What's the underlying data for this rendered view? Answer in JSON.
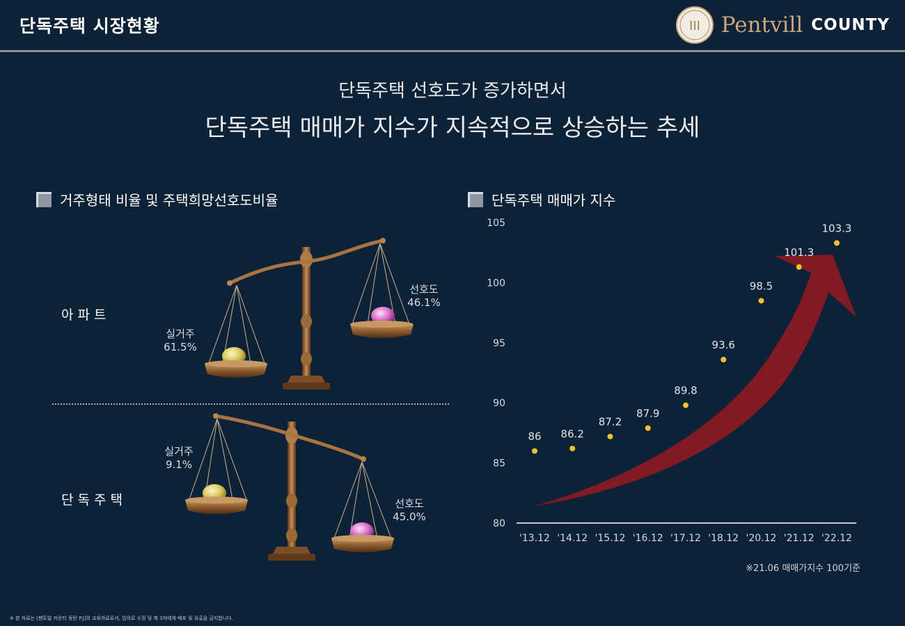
{
  "header": {
    "title": "단독주택 시장현황",
    "logo_monogram": "III",
    "brand_name": "Pentvill",
    "brand_suffix": "COUNTY"
  },
  "headline": {
    "line1": "단독주택 선호도가 증가하면서",
    "line2": "단독주택 매매가 지수가 지속적으로 상승하는 추세"
  },
  "left_section": {
    "title": "거주형태 비율 및 주택희망선호도비율",
    "rows": [
      {
        "label": "아파트",
        "left_pan": {
          "label": "실거주",
          "value": "61.5%"
        },
        "right_pan": {
          "label": "선호도",
          "value": "46.1%"
        }
      },
      {
        "label": "단독주택",
        "left_pan": {
          "label": "실거주",
          "value": "9.1%"
        },
        "right_pan": {
          "label": "선호도",
          "value": "45.0%"
        }
      }
    ]
  },
  "right_section": {
    "title": "단독주택 매매가 지수",
    "note": "※21.06 매매가지수 100기준"
  },
  "chart_data": {
    "type": "scatter",
    "title": "단독주택 매매가 지수",
    "categories": [
      "'13.12",
      "'14.12",
      "'15.12",
      "'16.12",
      "'17.12",
      "'18.12",
      "'20.12",
      "'21.12",
      "'22.12"
    ],
    "series": [
      {
        "values": [
          86,
          86.2,
          87.2,
          87.9,
          89.8,
          93.6,
          98.5,
          101.3,
          103.3
        ]
      }
    ],
    "data_labels": [
      "86",
      "86.2",
      "87.2",
      "87.9",
      "89.8",
      "93.6",
      "98.5",
      "101.3",
      "103.3"
    ],
    "ylim": [
      80,
      105
    ],
    "yticks": [
      80,
      85,
      90,
      95,
      100,
      105
    ],
    "point_color": "#f2c12e",
    "arrow_color": "#8b1a22",
    "grid": false
  },
  "footer": "※ 본 자료는 [펜트빌 카운티 동탄 P.J]의 교육자료로서, 임의로 수정 및 제 3자에게 배포 및 유출을 금지합니다."
}
